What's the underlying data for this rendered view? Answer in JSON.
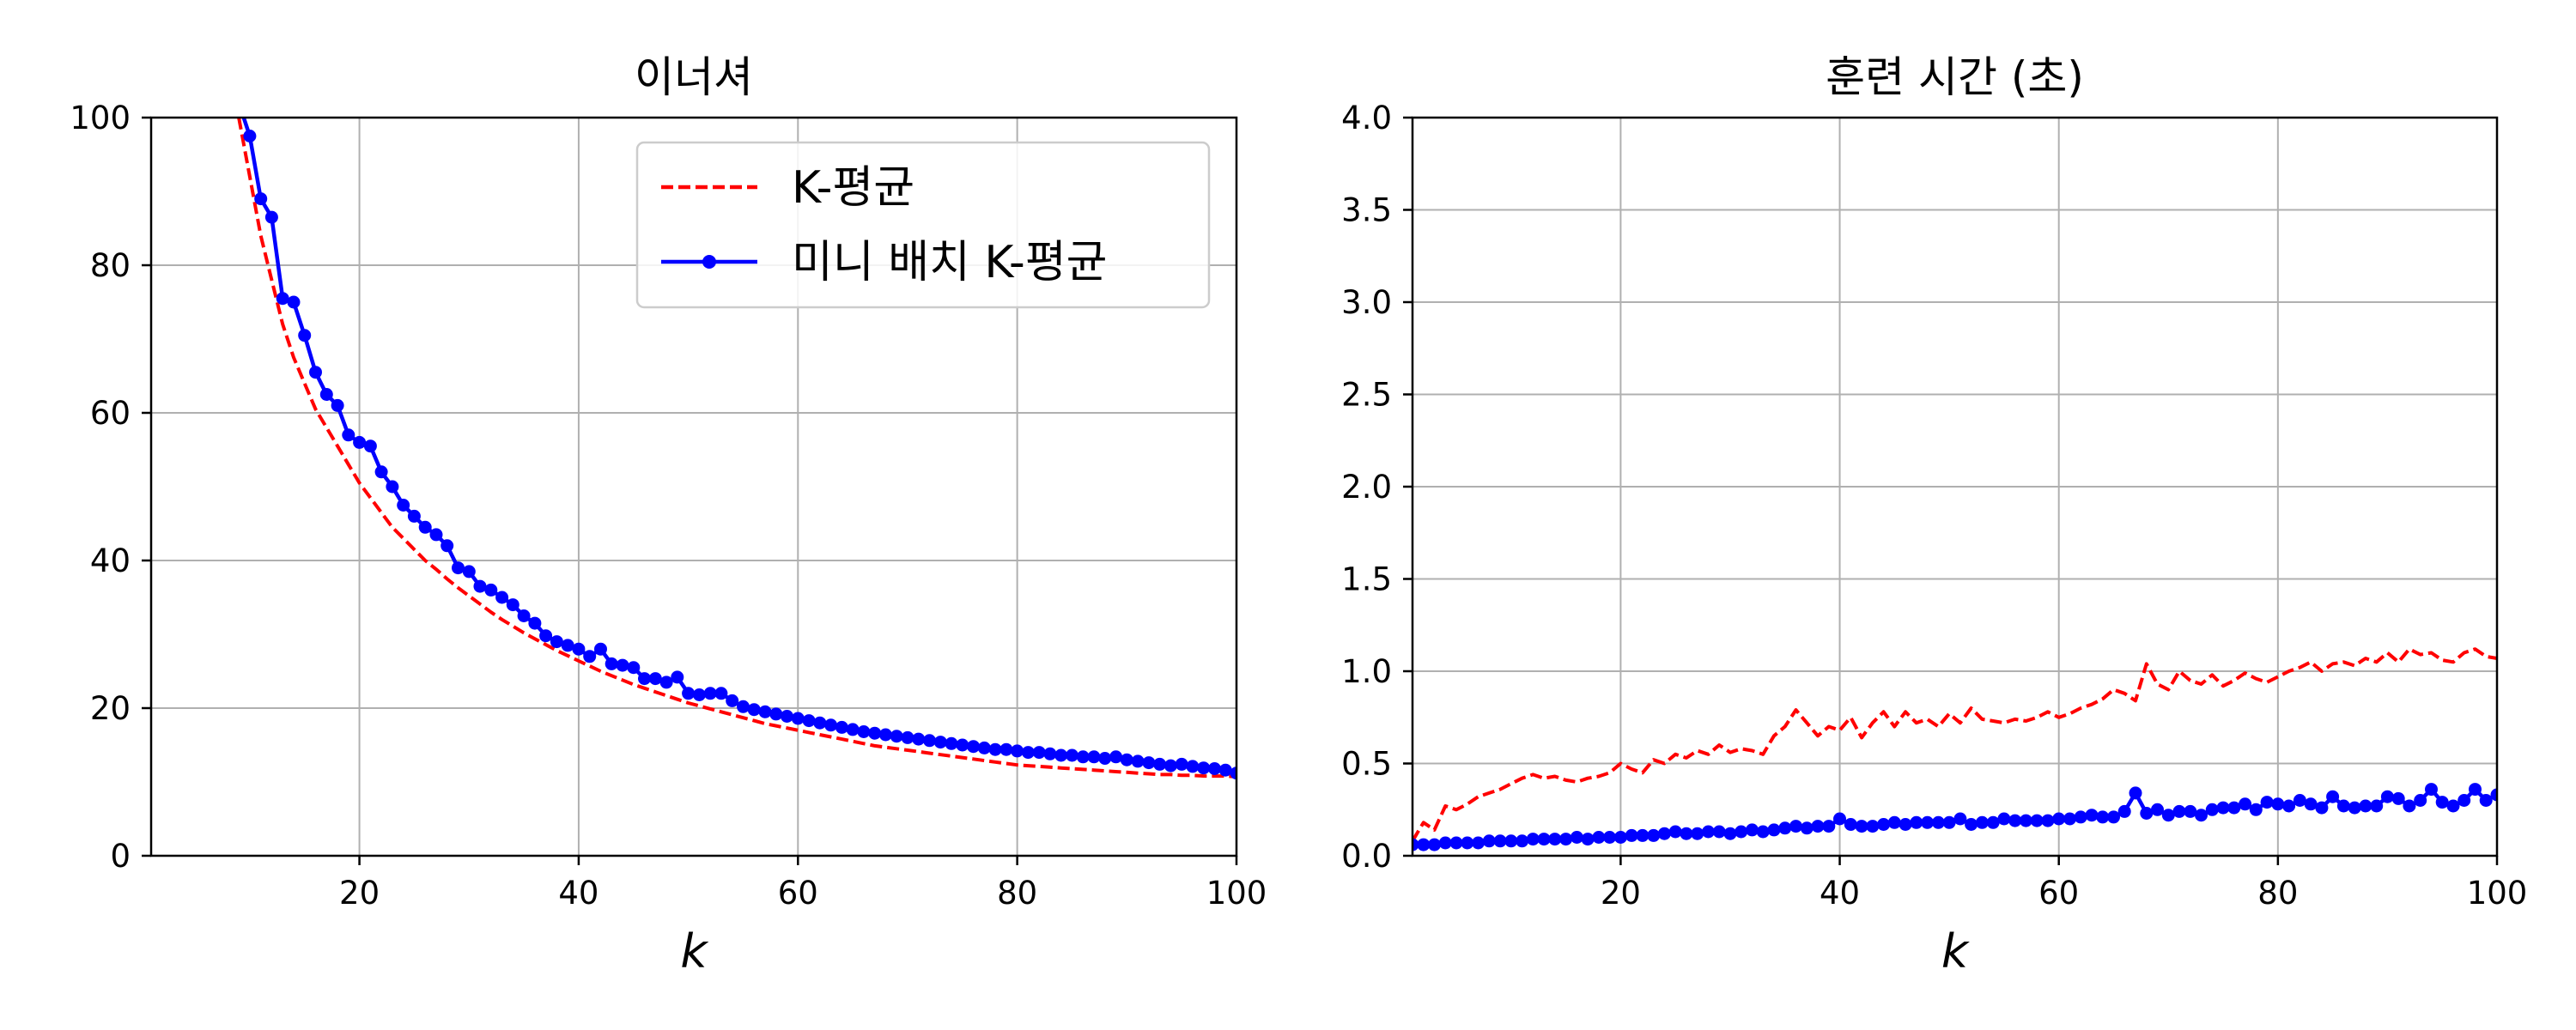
{
  "chart_data": [
    {
      "type": "line",
      "title": "이너셔",
      "xlabel": "k",
      "ylabel": "",
      "xlim": [
        1,
        100
      ],
      "ylim": [
        0,
        100
      ],
      "xticks": [
        "20",
        "40",
        "60",
        "80",
        "100"
      ],
      "yticks": [
        "0",
        "20",
        "40",
        "60",
        "80",
        "100"
      ],
      "grid": true,
      "legend": "upper-right",
      "series": [
        {
          "name": "K-평균",
          "color": "#ff0000",
          "style": "dashed",
          "x": [
            9,
            10,
            11,
            12,
            13,
            14,
            15,
            16,
            17,
            18,
            19,
            20,
            21,
            22,
            23,
            24,
            25,
            26,
            27,
            28,
            29,
            30,
            31,
            32,
            33,
            34,
            35,
            36,
            37,
            38,
            39,
            40,
            41,
            42,
            43,
            44,
            45,
            46,
            47,
            48,
            49,
            50,
            51,
            52,
            53,
            54,
            55,
            56,
            57,
            58,
            59,
            60,
            61,
            62,
            63,
            64,
            65,
            66,
            67,
            68,
            69,
            70,
            71,
            72,
            73,
            74,
            75,
            76,
            77,
            78,
            79,
            80,
            81,
            82,
            83,
            84,
            85,
            86,
            87,
            88,
            89,
            90,
            91,
            92,
            93,
            94,
            95,
            96,
            97,
            98,
            99,
            100
          ],
          "y": [
            100,
            92,
            84,
            78,
            72,
            67.5,
            64,
            60.5,
            58,
            55.5,
            53,
            50.5,
            48.5,
            46.5,
            44.5,
            43,
            41.5,
            40,
            38.8,
            37.5,
            36.3,
            35.2,
            34.1,
            33,
            32,
            31.1,
            30.2,
            29.4,
            28.6,
            27.8,
            27.1,
            26.4,
            25.7,
            25,
            24.4,
            23.8,
            23.2,
            22.7,
            22.2,
            21.7,
            21.2,
            20.7,
            20.3,
            19.9,
            19.5,
            19.1,
            18.7,
            18.3,
            17.9,
            17.6,
            17.3,
            17,
            16.7,
            16.4,
            16.1,
            15.8,
            15.5,
            15.2,
            14.9,
            14.7,
            14.5,
            14.3,
            14.1,
            13.9,
            13.7,
            13.5,
            13.3,
            13.1,
            12.9,
            12.7,
            12.5,
            12.3,
            12.2,
            12.1,
            12,
            11.9,
            11.8,
            11.7,
            11.6,
            11.5,
            11.4,
            11.3,
            11.2,
            11.1,
            11,
            11,
            10.9,
            10.9,
            10.8,
            10.8,
            10.8,
            10.7
          ]
        },
        {
          "name": "미니 배치 K-평균",
          "color": "#0000ff",
          "style": "solid-dots",
          "x": [
            9,
            10,
            11,
            12,
            13,
            14,
            15,
            16,
            17,
            18,
            19,
            20,
            21,
            22,
            23,
            24,
            25,
            26,
            27,
            28,
            29,
            30,
            31,
            32,
            33,
            34,
            35,
            36,
            37,
            38,
            39,
            40,
            41,
            42,
            43,
            44,
            45,
            46,
            47,
            48,
            49,
            50,
            51,
            52,
            53,
            54,
            55,
            56,
            57,
            58,
            59,
            60,
            61,
            62,
            63,
            64,
            65,
            66,
            67,
            68,
            69,
            70,
            71,
            72,
            73,
            74,
            75,
            76,
            77,
            78,
            79,
            80,
            81,
            82,
            83,
            84,
            85,
            86,
            87,
            88,
            89,
            90,
            91,
            92,
            93,
            94,
            95,
            96,
            97,
            98,
            99,
            100
          ],
          "y": [
            102,
            97.5,
            89,
            86.5,
            75.5,
            75,
            70.5,
            65.5,
            62.5,
            61,
            57,
            56,
            55.5,
            52,
            50,
            47.5,
            46,
            44.5,
            43.5,
            42,
            39,
            38.5,
            36.5,
            36,
            35,
            34,
            32.5,
            31.5,
            29.8,
            29,
            28.5,
            28,
            27,
            28,
            26,
            25.8,
            25.5,
            24,
            24,
            23.5,
            24.2,
            22,
            21.8,
            22,
            22,
            21,
            20.2,
            19.8,
            19.5,
            19.2,
            18.9,
            18.6,
            18.3,
            18,
            17.7,
            17.4,
            17.1,
            16.8,
            16.6,
            16.4,
            16.2,
            16,
            15.8,
            15.6,
            15.4,
            15.2,
            15,
            14.8,
            14.6,
            14.4,
            14.4,
            14.2,
            14,
            14,
            13.8,
            13.6,
            13.6,
            13.4,
            13.4,
            13.2,
            13.4,
            13,
            12.8,
            12.6,
            12.4,
            12.2,
            12.4,
            12.1,
            11.9,
            11.8,
            11.6,
            11.2
          ]
        }
      ]
    },
    {
      "type": "line",
      "title": "훈련 시간 (초)",
      "xlabel": "k",
      "ylabel": "",
      "xlim": [
        1,
        100
      ],
      "ylim": [
        0,
        4.0
      ],
      "xticks": [
        "20",
        "40",
        "60",
        "80",
        "100"
      ],
      "yticks": [
        "0.0",
        "0.5",
        "1.0",
        "1.5",
        "2.0",
        "2.5",
        "3.0",
        "3.5",
        "4.0"
      ],
      "grid": true,
      "series": [
        {
          "name": "K-평균",
          "color": "#ff0000",
          "style": "dashed",
          "x": [
            1,
            2,
            3,
            4,
            5,
            6,
            7,
            8,
            9,
            10,
            11,
            12,
            13,
            14,
            15,
            16,
            17,
            18,
            19,
            20,
            21,
            22,
            23,
            24,
            25,
            26,
            27,
            28,
            29,
            30,
            31,
            32,
            33,
            34,
            35,
            36,
            37,
            38,
            39,
            40,
            41,
            42,
            43,
            44,
            45,
            46,
            47,
            48,
            49,
            50,
            51,
            52,
            53,
            54,
            55,
            56,
            57,
            58,
            59,
            60,
            61,
            62,
            63,
            64,
            65,
            66,
            67,
            68,
            69,
            70,
            71,
            72,
            73,
            74,
            75,
            76,
            77,
            78,
            79,
            80,
            81,
            82,
            83,
            84,
            85,
            86,
            87,
            88,
            89,
            90,
            91,
            92,
            93,
            94,
            95,
            96,
            97,
            98,
            99,
            100
          ],
          "y": [
            0.08,
            0.18,
            0.14,
            0.27,
            0.25,
            0.28,
            0.32,
            0.34,
            0.36,
            0.39,
            0.42,
            0.44,
            0.42,
            0.43,
            0.41,
            0.4,
            0.42,
            0.43,
            0.45,
            0.5,
            0.47,
            0.45,
            0.52,
            0.5,
            0.55,
            0.53,
            0.57,
            0.55,
            0.6,
            0.56,
            0.58,
            0.57,
            0.55,
            0.65,
            0.7,
            0.79,
            0.72,
            0.65,
            0.7,
            0.68,
            0.75,
            0.64,
            0.72,
            0.78,
            0.7,
            0.78,
            0.72,
            0.74,
            0.7,
            0.77,
            0.72,
            0.8,
            0.74,
            0.73,
            0.72,
            0.74,
            0.73,
            0.75,
            0.78,
            0.75,
            0.77,
            0.8,
            0.82,
            0.85,
            0.9,
            0.88,
            0.84,
            1.04,
            0.93,
            0.9,
            1.0,
            0.95,
            0.93,
            0.98,
            0.92,
            0.95,
            0.99,
            0.96,
            0.94,
            0.97,
            1.0,
            1.02,
            1.05,
            1.0,
            1.04,
            1.05,
            1.03,
            1.07,
            1.05,
            1.1,
            1.05,
            1.12,
            1.09,
            1.1,
            1.06,
            1.05,
            1.1,
            1.12,
            1.08,
            1.07
          ]
        },
        {
          "name": "미니 배치 K-평균",
          "color": "#0000ff",
          "style": "solid-dots",
          "x": [
            1,
            2,
            3,
            4,
            5,
            6,
            7,
            8,
            9,
            10,
            11,
            12,
            13,
            14,
            15,
            16,
            17,
            18,
            19,
            20,
            21,
            22,
            23,
            24,
            25,
            26,
            27,
            28,
            29,
            30,
            31,
            32,
            33,
            34,
            35,
            36,
            37,
            38,
            39,
            40,
            41,
            42,
            43,
            44,
            45,
            46,
            47,
            48,
            49,
            50,
            51,
            52,
            53,
            54,
            55,
            56,
            57,
            58,
            59,
            60,
            61,
            62,
            63,
            64,
            65,
            66,
            67,
            68,
            69,
            70,
            71,
            72,
            73,
            74,
            75,
            76,
            77,
            78,
            79,
            80,
            81,
            82,
            83,
            84,
            85,
            86,
            87,
            88,
            89,
            90,
            91,
            92,
            93,
            94,
            95,
            96,
            97,
            98,
            99,
            100
          ],
          "y": [
            0.06,
            0.06,
            0.06,
            0.07,
            0.07,
            0.07,
            0.07,
            0.08,
            0.08,
            0.08,
            0.08,
            0.09,
            0.09,
            0.09,
            0.09,
            0.1,
            0.09,
            0.1,
            0.1,
            0.1,
            0.11,
            0.11,
            0.11,
            0.12,
            0.13,
            0.12,
            0.12,
            0.13,
            0.13,
            0.12,
            0.13,
            0.14,
            0.13,
            0.14,
            0.15,
            0.16,
            0.15,
            0.16,
            0.16,
            0.2,
            0.17,
            0.16,
            0.16,
            0.17,
            0.18,
            0.17,
            0.18,
            0.18,
            0.18,
            0.18,
            0.2,
            0.17,
            0.18,
            0.18,
            0.2,
            0.19,
            0.19,
            0.19,
            0.19,
            0.2,
            0.2,
            0.21,
            0.22,
            0.21,
            0.21,
            0.24,
            0.34,
            0.23,
            0.25,
            0.22,
            0.24,
            0.24,
            0.22,
            0.25,
            0.26,
            0.26,
            0.28,
            0.25,
            0.29,
            0.28,
            0.27,
            0.3,
            0.28,
            0.26,
            0.32,
            0.27,
            0.26,
            0.27,
            0.27,
            0.32,
            0.31,
            0.27,
            0.3,
            0.36,
            0.29,
            0.27,
            0.3,
            0.36,
            0.3,
            0.33
          ]
        }
      ]
    }
  ]
}
